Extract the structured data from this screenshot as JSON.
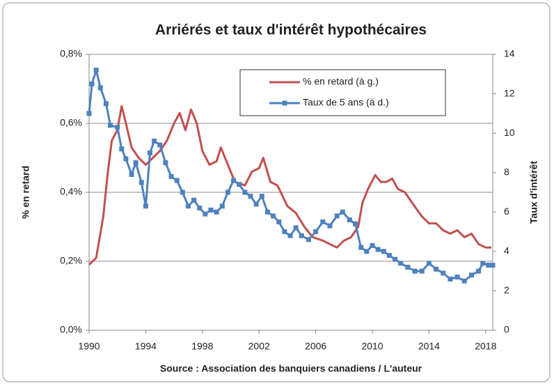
{
  "chart_data": {
    "type": "line",
    "title": "Arriérés et taux d'intérêt hypothécaires",
    "xlabel": "Source :  Association des banquiers canadiens / L'auteur",
    "ylabel": "% en retard",
    "y2label": "Taux d'intérêt",
    "xlim": [
      1990,
      2018.5
    ],
    "xticks": [
      1990,
      1994,
      1998,
      2002,
      2006,
      2010,
      2014,
      2018
    ],
    "ylim": [
      0,
      0.8
    ],
    "yticks": [
      {
        "value": 0,
        "label": "0,0%"
      },
      {
        "value": 0.2,
        "label": "0,2%"
      },
      {
        "value": 0.4,
        "label": "0,4%"
      },
      {
        "value": 0.6,
        "label": "0,6%"
      },
      {
        "value": 0.8,
        "label": "0,8%"
      }
    ],
    "y2lim": [
      0,
      14
    ],
    "y2ticks": [
      0,
      2,
      4,
      6,
      8,
      10,
      12,
      14
    ],
    "grid": true,
    "legend": "top-right",
    "series": [
      {
        "name": "% en retard (à g.)",
        "color": "#c0504d",
        "marker": "none",
        "x": [
          1990,
          1990.5,
          1991,
          1991.3,
          1991.6,
          1992,
          1992.3,
          1992.6,
          1993,
          1993.5,
          1994,
          1994.5,
          1995,
          1995.5,
          1996,
          1996.4,
          1996.8,
          1997.2,
          1997.6,
          1998,
          1998.5,
          1999,
          1999.3,
          1999.8,
          2000.3,
          2001,
          2001.5,
          2002,
          2002.3,
          2002.8,
          2003.3,
          2004,
          2004.6,
          2005.2,
          2005.8,
          2006.5,
          2007,
          2007.5,
          2008,
          2008.5,
          2009,
          2009.3,
          2009.7,
          2010.2,
          2010.6,
          2011,
          2011.4,
          2011.8,
          2012.3,
          2012.8,
          2013.5,
          2014,
          2014.5,
          2015,
          2015.5,
          2016,
          2016.5,
          2017,
          2017.5,
          2018,
          2018.4
        ],
        "values": [
          0.19,
          0.21,
          0.33,
          0.45,
          0.55,
          0.58,
          0.65,
          0.6,
          0.53,
          0.5,
          0.48,
          0.5,
          0.52,
          0.55,
          0.6,
          0.63,
          0.58,
          0.64,
          0.6,
          0.52,
          0.48,
          0.49,
          0.53,
          0.48,
          0.43,
          0.42,
          0.46,
          0.47,
          0.5,
          0.43,
          0.42,
          0.36,
          0.34,
          0.3,
          0.27,
          0.26,
          0.25,
          0.24,
          0.26,
          0.27,
          0.3,
          0.37,
          0.41,
          0.45,
          0.43,
          0.43,
          0.44,
          0.41,
          0.4,
          0.37,
          0.33,
          0.31,
          0.31,
          0.29,
          0.28,
          0.29,
          0.27,
          0.28,
          0.25,
          0.24,
          0.24
        ]
      },
      {
        "name": "Taux de 5 ans (à d.)",
        "color": "#4f81bd",
        "marker": "square",
        "axis": "y2",
        "x": [
          1990,
          1990.2,
          1990.5,
          1990.8,
          1991.2,
          1991.5,
          1992,
          1992.3,
          1992.6,
          1993,
          1993.3,
          1993.7,
          1994,
          1994.3,
          1994.6,
          1995,
          1995.4,
          1995.8,
          1996.2,
          1996.6,
          1997,
          1997.4,
          1997.8,
          1998.2,
          1998.6,
          1999,
          1999.4,
          1999.8,
          2000.2,
          2000.6,
          2001,
          2001.4,
          2001.8,
          2002.2,
          2002.6,
          2003,
          2003.4,
          2003.8,
          2004.2,
          2004.6,
          2005,
          2005.5,
          2006,
          2006.5,
          2007,
          2007.5,
          2007.9,
          2008.4,
          2008.8,
          2009.2,
          2009.6,
          2010,
          2010.4,
          2010.8,
          2011.2,
          2011.6,
          2012,
          2012.5,
          2013,
          2013.5,
          2014,
          2014.5,
          2015,
          2015.5,
          2016,
          2016.5,
          2017,
          2017.5,
          2017.8,
          2018.2,
          2018.5
        ],
        "values": [
          11.0,
          12.5,
          13.2,
          12.3,
          11.5,
          10.4,
          10.3,
          9.2,
          8.7,
          7.9,
          8.5,
          7.5,
          6.3,
          9.0,
          9.6,
          9.4,
          8.5,
          7.8,
          7.6,
          7.0,
          6.3,
          6.6,
          6.2,
          5.9,
          6.1,
          6.0,
          6.3,
          7.0,
          7.6,
          7.4,
          7.0,
          6.8,
          6.4,
          6.8,
          6.0,
          5.8,
          5.5,
          5.0,
          4.8,
          5.2,
          4.8,
          4.6,
          5.0,
          5.5,
          5.3,
          5.8,
          6.0,
          5.6,
          5.4,
          4.2,
          4.0,
          4.3,
          4.1,
          4.0,
          3.8,
          3.6,
          3.4,
          3.2,
          3.0,
          3.0,
          3.4,
          3.1,
          2.9,
          2.6,
          2.7,
          2.5,
          2.8,
          3.0,
          3.4,
          3.3,
          3.3
        ]
      }
    ]
  }
}
